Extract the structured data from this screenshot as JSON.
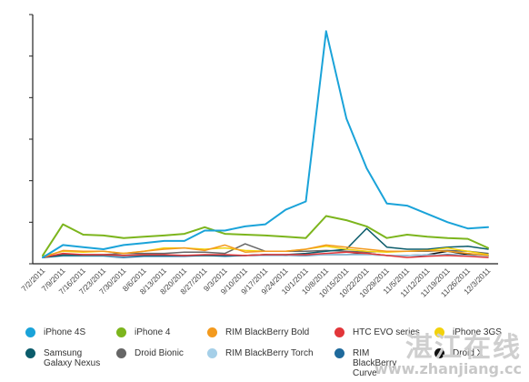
{
  "chart_data": {
    "type": "line",
    "title": "",
    "xlabel": "",
    "ylabel": "",
    "grid": false,
    "y_tick_labels_shown": false,
    "ylim": [
      0,
      6
    ],
    "yticks": [
      0,
      1,
      2,
      3,
      4,
      5,
      6
    ],
    "categories": [
      "7/2/2011",
      "7/9/2011",
      "7/16/2011",
      "7/23/2011",
      "7/30/2011",
      "8/6/2011",
      "8/13/2011",
      "8/20/2011",
      "8/27/2011",
      "9/3/2011",
      "9/10/2011",
      "9/17/2011",
      "9/24/2011",
      "10/1/2011",
      "10/8/2011",
      "10/15/2011",
      "10/22/2011",
      "10/29/2011",
      "11/5/2011",
      "11/12/2011",
      "11/19/2011",
      "11/26/2011",
      "12/3/2011"
    ],
    "series": [
      {
        "name": "iPhone 4S",
        "color": "#1aa3d9",
        "width": 2,
        "values": [
          0.15,
          0.45,
          0.4,
          0.35,
          0.45,
          0.5,
          0.55,
          0.55,
          0.8,
          0.8,
          0.9,
          0.95,
          1.3,
          1.5,
          5.6,
          3.5,
          2.3,
          1.45,
          1.4,
          1.2,
          1.0,
          0.85,
          0.88
        ]
      },
      {
        "name": "iPhone 4",
        "color": "#7cb51d",
        "width": 2,
        "values": [
          0.2,
          0.95,
          0.7,
          0.68,
          0.62,
          0.65,
          0.68,
          0.72,
          0.88,
          0.72,
          0.7,
          0.68,
          0.65,
          0.62,
          1.15,
          1.05,
          0.9,
          0.62,
          0.7,
          0.65,
          0.62,
          0.6,
          0.38
        ]
      },
      {
        "name": "RIM BlackBerry Bold",
        "color": "#f39a1e",
        "width": 1.5,
        "values": [
          0.15,
          0.32,
          0.3,
          0.3,
          0.25,
          0.3,
          0.35,
          0.38,
          0.32,
          0.45,
          0.28,
          0.3,
          0.3,
          0.35,
          0.45,
          0.4,
          0.35,
          0.3,
          0.3,
          0.32,
          0.3,
          0.25,
          0.2
        ]
      },
      {
        "name": "HTC EVO series",
        "color": "#e2363a",
        "width": 1.5,
        "values": [
          0.15,
          0.25,
          0.22,
          0.22,
          0.2,
          0.22,
          0.22,
          0.2,
          0.22,
          0.22,
          0.2,
          0.22,
          0.22,
          0.22,
          0.25,
          0.28,
          0.25,
          0.2,
          0.15,
          0.18,
          0.2,
          0.18,
          0.15
        ]
      },
      {
        "name": "iPhone 3GS",
        "color": "#f2d20c",
        "width": 1.5,
        "values": [
          0.18,
          0.3,
          0.28,
          0.3,
          0.25,
          0.3,
          0.38,
          0.38,
          0.35,
          0.38,
          0.32,
          0.3,
          0.3,
          0.35,
          0.42,
          0.35,
          0.3,
          0.28,
          0.3,
          0.32,
          0.38,
          0.3,
          0.22
        ]
      },
      {
        "name": "Samsung Galaxy Nexus",
        "color": "#0b5c6b",
        "width": 1.5,
        "values": [
          0.15,
          0.2,
          0.2,
          0.2,
          0.2,
          0.2,
          0.2,
          0.2,
          0.2,
          0.2,
          0.2,
          0.22,
          0.22,
          0.25,
          0.3,
          0.35,
          0.85,
          0.4,
          0.35,
          0.35,
          0.4,
          0.42,
          0.35
        ]
      },
      {
        "name": "Droid Bionic",
        "color": "#666666",
        "width": 1.5,
        "values": [
          0.15,
          0.22,
          0.22,
          0.22,
          0.25,
          0.25,
          0.25,
          0.28,
          0.28,
          0.25,
          0.48,
          0.3,
          0.3,
          0.3,
          0.32,
          0.3,
          0.28,
          0.3,
          0.3,
          0.3,
          0.32,
          0.3,
          0.25
        ]
      },
      {
        "name": "RIM BlackBerry Torch",
        "color": "#a5cfe8",
        "width": 1.5,
        "values": [
          0.15,
          0.18,
          0.18,
          0.18,
          0.18,
          0.2,
          0.2,
          0.2,
          0.2,
          0.2,
          0.2,
          0.2,
          0.2,
          0.22,
          0.22,
          0.22,
          0.22,
          0.2,
          0.2,
          0.22,
          0.2,
          0.2,
          0.18
        ]
      },
      {
        "name": "RIM BlackBerry Curve",
        "color": "#1f6a9c",
        "width": 1.5,
        "values": [
          0.15,
          0.2,
          0.18,
          0.18,
          0.15,
          0.18,
          0.18,
          0.18,
          0.2,
          0.18,
          0.2,
          0.2,
          0.2,
          0.2,
          0.22,
          0.22,
          0.22,
          0.2,
          0.2,
          0.2,
          0.22,
          0.2,
          0.18
        ]
      },
      {
        "name": "Droid X",
        "color": "#111111",
        "width": 1.5,
        "values": [
          0.15,
          0.2,
          0.2,
          0.2,
          0.2,
          0.2,
          0.2,
          0.2,
          0.2,
          0.2,
          0.2,
          0.22,
          0.2,
          0.22,
          0.22,
          0.22,
          0.25,
          0.2,
          0.2,
          0.22,
          0.3,
          0.22,
          0.2
        ]
      }
    ]
  },
  "legend": {
    "row1": [
      {
        "label": "iPhone 4S",
        "color": "#1aa3d9"
      },
      {
        "label": "iPhone 4",
        "color": "#7cb51d"
      },
      {
        "label": "RIM BlackBerry Bold",
        "color": "#f39a1e"
      },
      {
        "label": "HTC EVO series",
        "color": "#e2363a"
      },
      {
        "label": "iPhone 3GS",
        "color": "#f2d20c"
      }
    ],
    "row2": [
      {
        "label": "Samsung Galaxy Nexus",
        "color": "#0b5c6b"
      },
      {
        "label": "Droid Bionic",
        "color": "#666666"
      },
      {
        "label": "RIM BlackBerry Torch",
        "color": "#a5cfe8"
      },
      {
        "label": "RIM BlackBerry Curve",
        "color": "#1f6a9c"
      },
      {
        "label": "Droid X",
        "color": "#111111"
      }
    ]
  },
  "watermark": {
    "logo": "湛江在线",
    "url": "www.zhanjiang.cc"
  }
}
